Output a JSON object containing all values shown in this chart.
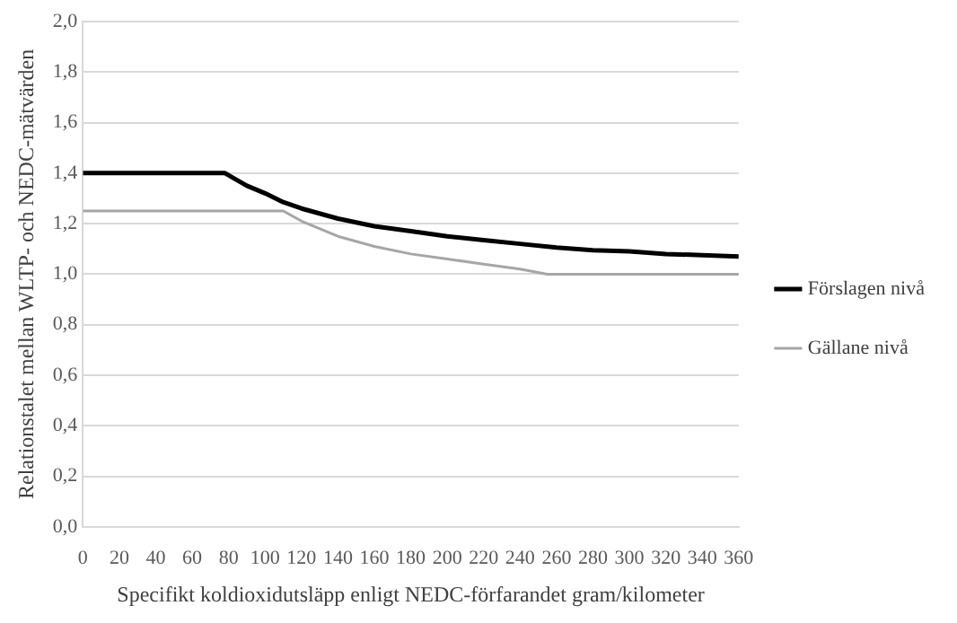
{
  "chart_data": {
    "type": "line",
    "xlabel": "Specifikt koldioxidutsläpp enligt NEDC-förfarandet gram/kilometer",
    "ylabel": "Relationstalet mellan WLTP- och NEDC-mätvärden",
    "xlim": [
      0,
      360
    ],
    "xticks": [
      0,
      20,
      40,
      60,
      80,
      100,
      120,
      140,
      160,
      180,
      200,
      220,
      240,
      260,
      280,
      300,
      320,
      340,
      360
    ],
    "ylim": [
      0,
      2
    ],
    "yticks": [
      {
        "value": 0,
        "label": "0,0"
      },
      {
        "value": 0.2,
        "label": "0,2"
      },
      {
        "value": 0.4,
        "label": "0,4"
      },
      {
        "value": 0.6,
        "label": "0,6"
      },
      {
        "value": 0.8,
        "label": "0,8"
      },
      {
        "value": 1,
        "label": "1,0"
      },
      {
        "value": 1.2,
        "label": "1,2"
      },
      {
        "value": 1.4,
        "label": "1,4"
      },
      {
        "value": 1.6,
        "label": "1,6"
      },
      {
        "value": 1.8,
        "label": "1,8"
      },
      {
        "value": 2,
        "label": "2,0"
      }
    ],
    "grid": "y",
    "legend": "right",
    "marker": "none",
    "line_style": "solid",
    "series": [
      {
        "name": "Förslagen nivå",
        "color": "#000000",
        "x": [
          0,
          78,
          90,
          100,
          110,
          120,
          140,
          160,
          180,
          200,
          220,
          240,
          260,
          280,
          300,
          320,
          340,
          360
        ],
        "values": [
          1.4,
          1.4,
          1.35,
          1.32,
          1.285,
          1.26,
          1.22,
          1.19,
          1.17,
          1.15,
          1.135,
          1.12,
          1.105,
          1.095,
          1.09,
          1.08,
          1.075,
          1.07
        ]
      },
      {
        "name": "Gällane nivå",
        "color": "#a6a6a6",
        "x": [
          0,
          110,
          120,
          140,
          160,
          180,
          200,
          220,
          240,
          255,
          360
        ],
        "values": [
          1.25,
          1.25,
          1.21,
          1.15,
          1.11,
          1.08,
          1.06,
          1.04,
          1.02,
          1.0,
          1.0
        ]
      }
    ]
  }
}
